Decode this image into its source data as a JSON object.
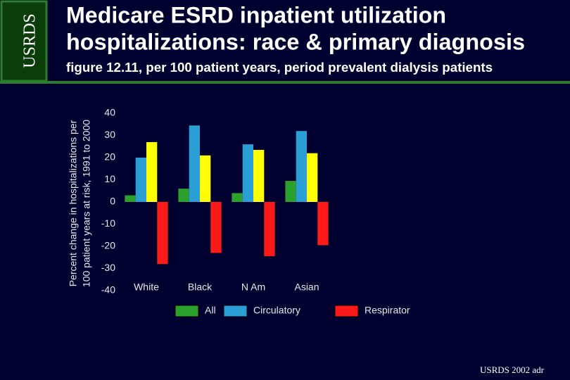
{
  "header": {
    "logo": "USRDS",
    "title": [
      "Medicare ESRD inpatient utilization",
      "hospitalizations: race & primary diagnosis"
    ],
    "subtitle": "figure 12.11, per 100 patient years, period prevalent dialysis patients"
  },
  "footer": "USRDS 2002 adr",
  "chart_data": {
    "type": "bar",
    "ylabel": [
      "Percent change in hospitalizations per",
      "100 patient years at risk, 1991 to 2000"
    ],
    "categories": [
      "White",
      "Black",
      "N Am",
      "Asian"
    ],
    "series": [
      {
        "name": "All",
        "color": "#2ca02c",
        "values": [
          3,
          6,
          4,
          9.5
        ]
      },
      {
        "name": "Circulatory",
        "color": "#2a9fd6",
        "values": [
          20,
          34.5,
          26,
          32
        ]
      },
      {
        "name": null,
        "color": "#ffff00",
        "values": [
          27,
          21,
          23.5,
          22
        ]
      },
      {
        "name": "Respirator",
        "color": "#ff1a1a",
        "values": [
          -28,
          -23,
          -24.5,
          -19.5
        ]
      }
    ],
    "ylim": [
      -40,
      40
    ],
    "yticks": [
      -40,
      -30,
      -20,
      -10,
      0,
      10,
      20,
      30,
      40
    ],
    "grid": false
  }
}
